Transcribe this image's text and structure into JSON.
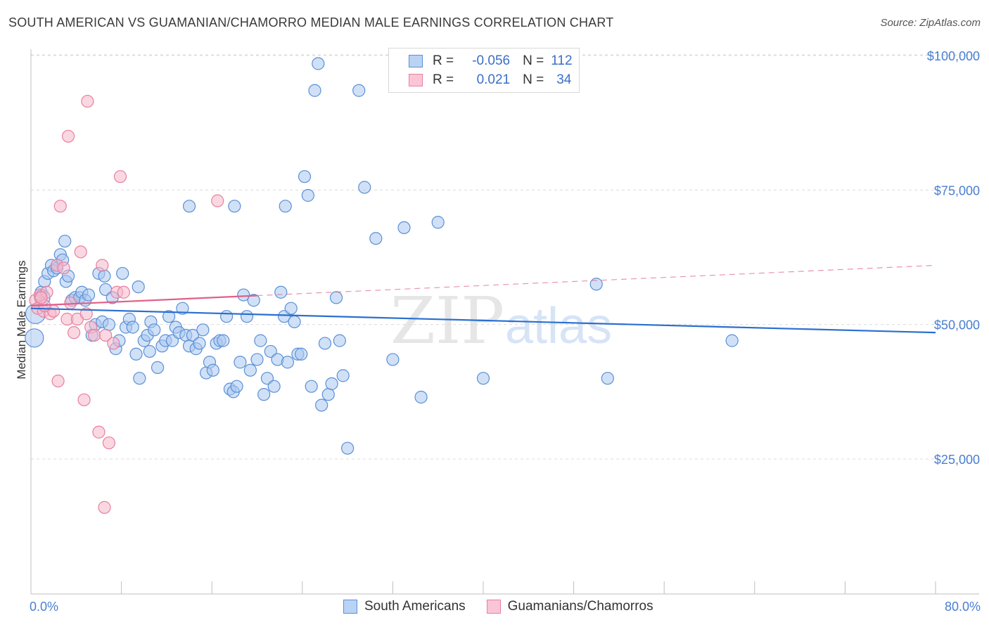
{
  "title": "SOUTH AMERICAN VS GUAMANIAN/CHAMORRO MEDIAN MALE EARNINGS CORRELATION CHART",
  "source": "Source: ZipAtlas.com",
  "legend": {
    "r_label": "R =",
    "n_label": "N =",
    "rows": [
      {
        "r": "-0.056",
        "n": "112"
      },
      {
        "r": "0.021",
        "n": "34"
      }
    ]
  },
  "colors": {
    "blue_fill": "#a9c8f0",
    "blue_stroke": "#5b8fd6",
    "blue_line": "#2a6fd0",
    "pink_fill": "#f6b8cb",
    "pink_stroke": "#e87fa0",
    "pink_line": "#e0608a",
    "axis_text": "#4a7fd0",
    "grid": "#dcdcdc"
  },
  "chart_data": {
    "type": "scatter",
    "ylabel": "Median Male Earnings",
    "xlim": [
      0,
      80
    ],
    "ylim": [
      5000,
      105000
    ],
    "y_ticks": [
      {
        "value": 25000,
        "label": "$25,000"
      },
      {
        "value": 50000,
        "label": "$50,000"
      },
      {
        "value": 75000,
        "label": "$75,000"
      },
      {
        "value": 100000,
        "label": "$100,000"
      }
    ],
    "x_tick_labels": [
      {
        "value": 0,
        "label": "0.0%"
      },
      {
        "value": 80,
        "label": "80.0%"
      }
    ],
    "grid": true,
    "legend_position": "top-center",
    "series": [
      {
        "name": "South Americans",
        "r": -0.056,
        "n": 112,
        "trend": {
          "x": [
            0,
            80
          ],
          "y": [
            53000,
            48500
          ],
          "dashed_from": null
        },
        "points": [
          [
            0.4,
            52000
          ],
          [
            0.3,
            47500
          ],
          [
            0.9,
            56000
          ],
          [
            1.2,
            58000
          ],
          [
            1.5,
            59500
          ],
          [
            1.8,
            61000
          ],
          [
            2.0,
            60000
          ],
          [
            2.3,
            60500
          ],
          [
            2.6,
            63000
          ],
          [
            2.8,
            62000
          ],
          [
            3.1,
            58000
          ],
          [
            3.3,
            59000
          ],
          [
            3.6,
            54500
          ],
          [
            3.9,
            55000
          ],
          [
            4.3,
            55000
          ],
          [
            4.5,
            56000
          ],
          [
            4.8,
            54500
          ],
          [
            5.1,
            55500
          ],
          [
            5.4,
            48000
          ],
          [
            5.7,
            50000
          ],
          [
            6.0,
            59500
          ],
          [
            6.3,
            50500
          ],
          [
            6.6,
            56500
          ],
          [
            6.9,
            50000
          ],
          [
            7.2,
            55000
          ],
          [
            7.5,
            45500
          ],
          [
            7.8,
            47000
          ],
          [
            8.1,
            59500
          ],
          [
            8.4,
            49500
          ],
          [
            8.7,
            51000
          ],
          [
            9.0,
            49500
          ],
          [
            9.3,
            44500
          ],
          [
            9.6,
            40000
          ],
          [
            10.0,
            47000
          ],
          [
            10.3,
            48000
          ],
          [
            10.6,
            50500
          ],
          [
            10.9,
            49000
          ],
          [
            11.2,
            42000
          ],
          [
            11.6,
            46000
          ],
          [
            11.9,
            47000
          ],
          [
            12.2,
            51500
          ],
          [
            12.5,
            47000
          ],
          [
            12.8,
            49500
          ],
          [
            13.1,
            48500
          ],
          [
            13.4,
            53000
          ],
          [
            13.7,
            48000
          ],
          [
            14.0,
            46000
          ],
          [
            14.3,
            48000
          ],
          [
            14.6,
            45500
          ],
          [
            14.9,
            46500
          ],
          [
            15.2,
            49000
          ],
          [
            15.5,
            41000
          ],
          [
            15.8,
            43000
          ],
          [
            16.1,
            41500
          ],
          [
            16.4,
            46500
          ],
          [
            16.7,
            47000
          ],
          [
            17.0,
            47000
          ],
          [
            17.3,
            51500
          ],
          [
            17.6,
            38000
          ],
          [
            17.9,
            37500
          ],
          [
            18.2,
            38500
          ],
          [
            18.5,
            43000
          ],
          [
            18.8,
            55500
          ],
          [
            19.1,
            51500
          ],
          [
            19.4,
            41500
          ],
          [
            19.7,
            54500
          ],
          [
            20.0,
            43500
          ],
          [
            20.3,
            47000
          ],
          [
            20.6,
            37000
          ],
          [
            20.9,
            40000
          ],
          [
            21.2,
            45000
          ],
          [
            21.5,
            38500
          ],
          [
            21.8,
            43500
          ],
          [
            22.1,
            56000
          ],
          [
            22.4,
            51500
          ],
          [
            22.7,
            43000
          ],
          [
            23.0,
            53000
          ],
          [
            23.3,
            50500
          ],
          [
            23.6,
            44500
          ],
          [
            23.9,
            44500
          ],
          [
            24.2,
            77500
          ],
          [
            24.5,
            74000
          ],
          [
            24.8,
            38500
          ],
          [
            25.1,
            93500
          ],
          [
            25.4,
            98500
          ],
          [
            25.7,
            35000
          ],
          [
            26.0,
            46500
          ],
          [
            26.3,
            37000
          ],
          [
            26.6,
            39000
          ],
          [
            27.0,
            55000
          ],
          [
            27.3,
            47000
          ],
          [
            27.6,
            40500
          ],
          [
            28.0,
            27000
          ],
          [
            29.0,
            93500
          ],
          [
            29.5,
            75500
          ],
          [
            30.5,
            66000
          ],
          [
            32.0,
            43500
          ],
          [
            33.0,
            68000
          ],
          [
            34.5,
            36500
          ],
          [
            36.0,
            69000
          ],
          [
            40.0,
            40000
          ],
          [
            50.0,
            57500
          ],
          [
            51.0,
            40000
          ],
          [
            62.0,
            47000
          ],
          [
            9.5,
            57000
          ],
          [
            18.0,
            72000
          ],
          [
            22.5,
            72000
          ],
          [
            3.0,
            65500
          ],
          [
            6.5,
            59000
          ],
          [
            10.5,
            45000
          ],
          [
            14.0,
            72000
          ],
          [
            1.0,
            55000
          ]
        ]
      },
      {
        "name": "Guamanians/Chamorros",
        "r": 0.021,
        "n": 34,
        "trend": {
          "x": [
            0,
            80
          ],
          "y": [
            53500,
            61000
          ],
          "solid_until": 20
        },
        "points": [
          [
            0.4,
            54500
          ],
          [
            0.6,
            53000
          ],
          [
            0.8,
            55500
          ],
          [
            1.1,
            52500
          ],
          [
            1.4,
            56000
          ],
          [
            1.7,
            52000
          ],
          [
            2.0,
            52500
          ],
          [
            2.3,
            61000
          ],
          [
            2.6,
            72000
          ],
          [
            2.9,
            60500
          ],
          [
            3.2,
            51000
          ],
          [
            3.5,
            54000
          ],
          [
            3.8,
            48500
          ],
          [
            4.1,
            51000
          ],
          [
            4.4,
            63500
          ],
          [
            4.7,
            36000
          ],
          [
            5.0,
            91500
          ],
          [
            5.3,
            49500
          ],
          [
            5.6,
            48000
          ],
          [
            6.0,
            30000
          ],
          [
            6.3,
            61000
          ],
          [
            6.6,
            48000
          ],
          [
            6.9,
            28000
          ],
          [
            7.3,
            46500
          ],
          [
            7.6,
            56000
          ],
          [
            7.9,
            77500
          ],
          [
            8.2,
            56000
          ],
          [
            16.5,
            73000
          ],
          [
            3.3,
            85000
          ],
          [
            2.4,
            39500
          ],
          [
            6.5,
            16000
          ],
          [
            1.2,
            53500
          ],
          [
            0.9,
            55000
          ],
          [
            4.9,
            52000
          ]
        ]
      }
    ],
    "watermark": "ZIPatlas"
  }
}
